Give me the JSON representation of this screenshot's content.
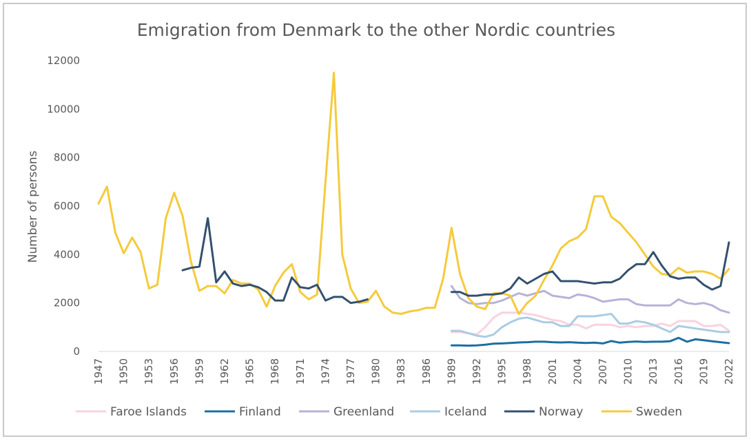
{
  "chart_data": {
    "type": "line",
    "title": "Emigration from Denmark to the other Nordic countries",
    "xlabel": "",
    "ylabel": "Number of persons",
    "ylim": [
      0,
      12000
    ],
    "y_ticks": [
      "0",
      "2000",
      "4000",
      "6000",
      "8000",
      "10000",
      "12000"
    ],
    "x_tick_labels": [
      "1947",
      "1950",
      "1953",
      "1956",
      "1959",
      "1962",
      "1965",
      "1968",
      "1971",
      "1974",
      "1977",
      "1980",
      "1983",
      "1986",
      "1989",
      "1992",
      "1995",
      "1998",
      "2001",
      "2004",
      "2007",
      "2010",
      "2013",
      "2016",
      "2019",
      "2022"
    ],
    "grid": false,
    "legend_position": "bottom",
    "x": [
      1947,
      1948,
      1949,
      1950,
      1951,
      1952,
      1953,
      1954,
      1955,
      1956,
      1957,
      1958,
      1959,
      1960,
      1961,
      1962,
      1963,
      1964,
      1965,
      1966,
      1967,
      1968,
      1969,
      1970,
      1971,
      1972,
      1973,
      1974,
      1975,
      1976,
      1977,
      1978,
      1979,
      1980,
      1981,
      1982,
      1983,
      1984,
      1985,
      1986,
      1987,
      1988,
      1989,
      1990,
      1991,
      1992,
      1993,
      1994,
      1995,
      1996,
      1997,
      1998,
      1999,
      2000,
      2001,
      2002,
      2003,
      2004,
      2005,
      2006,
      2007,
      2008,
      2009,
      2010,
      2011,
      2012,
      2013,
      2014,
      2015,
      2016,
      2017,
      2018,
      2019,
      2020,
      2021,
      2022
    ],
    "series": [
      {
        "name": "Faroe Islands",
        "color": "#f8d3df",
        "values": [
          null,
          null,
          null,
          null,
          null,
          null,
          null,
          null,
          null,
          null,
          null,
          null,
          null,
          null,
          null,
          null,
          null,
          null,
          null,
          null,
          null,
          null,
          null,
          null,
          null,
          null,
          null,
          null,
          null,
          null,
          null,
          null,
          null,
          null,
          null,
          null,
          null,
          null,
          null,
          null,
          null,
          null,
          800,
          800,
          750,
          700,
          1000,
          1400,
          1600,
          1600,
          1600,
          1550,
          1500,
          1400,
          1300,
          1250,
          1100,
          1100,
          950,
          1100,
          1100,
          1100,
          1000,
          1050,
          1000,
          1050,
          1050,
          1150,
          1050,
          1250,
          1250,
          1250,
          1050,
          1050,
          1100,
          850
        ]
      },
      {
        "name": "Finland",
        "color": "#1c6fa3",
        "values": [
          null,
          null,
          null,
          null,
          null,
          null,
          null,
          null,
          null,
          null,
          null,
          null,
          null,
          null,
          null,
          null,
          null,
          null,
          null,
          null,
          null,
          null,
          null,
          null,
          null,
          null,
          null,
          null,
          null,
          null,
          null,
          null,
          null,
          null,
          null,
          null,
          null,
          null,
          null,
          null,
          null,
          null,
          250,
          250,
          240,
          250,
          280,
          320,
          330,
          350,
          370,
          380,
          400,
          400,
          380,
          370,
          380,
          360,
          350,
          360,
          330,
          430,
          360,
          390,
          410,
          390,
          400,
          400,
          420,
          560,
          400,
          500,
          460,
          420,
          380,
          340
        ]
      },
      {
        "name": "Greenland",
        "color": "#b6b3d8",
        "values": [
          null,
          null,
          null,
          null,
          null,
          null,
          null,
          null,
          null,
          null,
          null,
          null,
          null,
          null,
          null,
          null,
          null,
          null,
          null,
          null,
          null,
          null,
          null,
          null,
          null,
          null,
          null,
          null,
          null,
          null,
          null,
          null,
          null,
          null,
          null,
          null,
          null,
          null,
          null,
          null,
          null,
          null,
          2700,
          2200,
          2000,
          1950,
          2000,
          2000,
          2100,
          2250,
          2400,
          2300,
          2400,
          2500,
          2300,
          2250,
          2200,
          2350,
          2300,
          2200,
          2050,
          2100,
          2150,
          2150,
          1950,
          1900,
          1900,
          1900,
          1900,
          2150,
          2000,
          1950,
          2000,
          1900,
          1700,
          1600
        ]
      },
      {
        "name": "Iceland",
        "color": "#a9cce4",
        "values": [
          null,
          null,
          null,
          null,
          null,
          null,
          null,
          null,
          null,
          null,
          null,
          null,
          null,
          null,
          null,
          null,
          null,
          null,
          null,
          null,
          null,
          null,
          null,
          null,
          null,
          null,
          null,
          null,
          null,
          null,
          null,
          null,
          null,
          null,
          null,
          null,
          null,
          null,
          null,
          null,
          null,
          null,
          850,
          850,
          750,
          650,
          600,
          700,
          1000,
          1200,
          1350,
          1400,
          1300,
          1200,
          1200,
          1050,
          1050,
          1450,
          1450,
          1450,
          1500,
          1550,
          1150,
          1150,
          1250,
          1200,
          1100,
          950,
          800,
          1050,
          1000,
          950,
          900,
          850,
          800,
          800
        ]
      },
      {
        "name": "Norway",
        "color": "#33506f",
        "values": [
          null,
          null,
          null,
          null,
          null,
          null,
          null,
          null,
          null,
          null,
          3350,
          3450,
          3500,
          5500,
          2850,
          3300,
          2800,
          2700,
          2750,
          2650,
          2450,
          2100,
          2100,
          3050,
          2650,
          2600,
          2750,
          2100,
          2250,
          2250,
          2000,
          2050,
          2150,
          null,
          null,
          null,
          null,
          null,
          null,
          null,
          null,
          null,
          2450,
          2450,
          2300,
          2300,
          2350,
          2350,
          2400,
          2600,
          3050,
          2800,
          3000,
          3200,
          3300,
          2900,
          2900,
          2900,
          2850,
          2800,
          2850,
          2850,
          3000,
          3350,
          3600,
          3600,
          4100,
          3550,
          3100,
          3000,
          3050,
          3050,
          2750,
          2550,
          2700,
          4500
        ]
      },
      {
        "name": "Sweden",
        "color": "#f5ca3b",
        "values": [
          6100,
          6800,
          4900,
          4050,
          4700,
          4100,
          2600,
          2750,
          5500,
          6550,
          5600,
          3700,
          2500,
          2700,
          2700,
          2400,
          2950,
          2800,
          2800,
          2550,
          1850,
          2700,
          3250,
          3600,
          2450,
          2150,
          2350,
          7000,
          11500,
          4000,
          2600,
          2000,
          2050,
          2500,
          1850,
          1600,
          1550,
          1650,
          1700,
          1800,
          1800,
          3000,
          5100,
          3200,
          2200,
          1850,
          1750,
          2400,
          2400,
          2300,
          1550,
          2000,
          2300,
          2950,
          3550,
          4250,
          4550,
          4700,
          5050,
          6400,
          6400,
          5550,
          5300,
          4900,
          4500,
          4000,
          3500,
          3200,
          3150,
          3450,
          3250,
          3300,
          3300,
          3200,
          3000,
          3400
        ]
      }
    ]
  }
}
